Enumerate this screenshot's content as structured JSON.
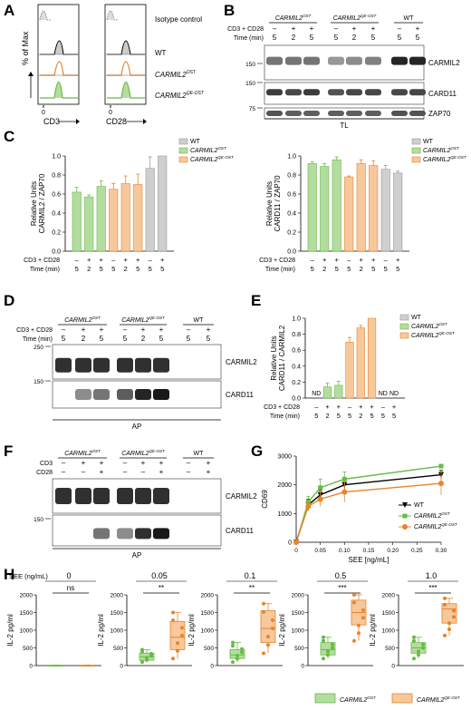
{
  "panels": {
    "A": "A",
    "B": "B",
    "C": "C",
    "D": "D",
    "E": "E",
    "F": "F",
    "G": "G",
    "H": "H"
  },
  "geno": {
    "ost": "CARMIL2",
    "ost_sup": "OST",
    "qe": "CARMIL2",
    "qe_sup": "QE-OST",
    "wt": "WT"
  },
  "panelA": {
    "ylabel": "% of Max",
    "x1": "CD3",
    "x2": "CD28",
    "ticks": [
      "0",
      "0"
    ],
    "legend": [
      "Isotype control",
      "WT",
      "CARMIL2",
      "CARMIL2"
    ],
    "legend_sup": [
      "",
      "",
      "OST",
      "QE-OST"
    ]
  },
  "blot": {
    "cd3cd28": "CD3 + CD28",
    "time": "Time (min)",
    "cd3": "CD3",
    "cd28": "CD28",
    "stim": [
      "–",
      "+",
      "+",
      "–",
      "+",
      "+",
      "–",
      "+"
    ],
    "times": [
      "5",
      "2",
      "5",
      "5",
      "2",
      "5",
      "5",
      "5"
    ],
    "stimD": [
      "–",
      "+",
      "+",
      "–",
      "+",
      "+",
      "–",
      "+"
    ],
    "timesD": [
      "5",
      "2",
      "5",
      "5",
      "2",
      "5",
      "5",
      "5"
    ],
    "cd3F": [
      "–",
      "+",
      "+",
      "–",
      "+",
      "+",
      "–",
      "+"
    ],
    "cd28F": [
      "–",
      "–",
      "+",
      "–",
      "–",
      "+",
      "–",
      "+"
    ]
  },
  "panelB": {
    "bands": [
      "CARMIL2",
      "CARD11",
      "ZAP70"
    ],
    "mw": [
      "150",
      "150",
      "75"
    ],
    "footer": "TL"
  },
  "panelD": {
    "bands": [
      "CARMIL2",
      "CARD11"
    ],
    "mw": [
      "250",
      "150"
    ],
    "footer": "AP"
  },
  "panelF": {
    "bands": [
      "CARMIL2",
      "CARD11"
    ],
    "mw": [
      "150"
    ],
    "footer": "AP"
  },
  "panelC": {
    "left": {
      "ylabel1": "Relative Units",
      "ylabel2": "CARMIL2 / ZAP70",
      "yticks": [
        "0.0",
        "0.2",
        "0.4",
        "0.6",
        "0.8",
        "1.0"
      ]
    },
    "right": {
      "ylabel1": "Relative Units",
      "ylabel2": "CARD11 / ZAP70",
      "yticks": [
        "0.0",
        "0.2",
        "0.4",
        "0.6",
        "0.8",
        "1.0"
      ]
    }
  },
  "panelE": {
    "ylabel1": "Relative Units",
    "ylabel2": "CARD11 / CARMIL2",
    "yticks": [
      "0.0",
      "0.2",
      "0.4",
      "0.6",
      "0.8",
      "1.0"
    ],
    "nd": "ND"
  },
  "panelG": {
    "ylabel": "CD69",
    "xlabel": "SEE [ng/mL]",
    "yticks": [
      "0",
      "1000",
      "2000",
      "3000"
    ],
    "xticks": [
      "0",
      "0.05",
      "0.10",
      "0.15",
      "0.20",
      "0.25",
      "0.30"
    ]
  },
  "panelH": {
    "see_label": "SEE (ng/mL)",
    "ylabel": "IL-2 pg/ml",
    "yticks": [
      "0",
      "500",
      "1000",
      "1500",
      "2000"
    ]
  },
  "chart_data": [
    {
      "type": "bar",
      "ylabel": "Relative Units CARMIL2 / ZAP70",
      "ylim": [
        0,
        1.0
      ],
      "categories": [
        "5",
        "2",
        "5",
        "5",
        "2",
        "5",
        "5",
        "5"
      ],
      "values": [
        0.62,
        0.57,
        0.68,
        0.65,
        0.71,
        0.7,
        0.87,
        1.0
      ],
      "errors": [
        0.05,
        0.02,
        0.06,
        0.06,
        0.08,
        0.11,
        0.12,
        0
      ]
    },
    {
      "type": "bar",
      "ylabel": "Relative Units CARD11 / ZAP70",
      "ylim": [
        0,
        1.0
      ],
      "categories": [
        "5",
        "2",
        "5",
        "5",
        "2",
        "5",
        "5",
        "5"
      ],
      "values": [
        0.92,
        0.89,
        0.96,
        0.78,
        0.92,
        0.9,
        0.86,
        0.82
      ],
      "errors": [
        0.02,
        0.03,
        0.03,
        0.01,
        0.04,
        0.05,
        0.04,
        0.02
      ]
    },
    {
      "type": "bar",
      "ylabel": "Relative Units CARD11 / CARMIL2",
      "ylim": [
        0,
        1.0
      ],
      "categories": [
        "5",
        "2",
        "5",
        "5",
        "2",
        "5",
        "5",
        "5"
      ],
      "values": [
        0,
        0.14,
        0.16,
        0.7,
        0.88,
        1.0,
        0,
        0
      ],
      "errors": [
        0,
        0.05,
        0.05,
        0.06,
        0.03,
        0,
        0,
        0
      ],
      "labels": [
        "ND",
        "",
        "",
        "",
        "",
        "",
        "ND",
        "ND"
      ]
    },
    {
      "type": "line",
      "xlabel": "SEE [ng/mL]",
      "ylabel": "CD69",
      "ylim": [
        0,
        3000
      ],
      "xlim": [
        0,
        0.3
      ],
      "x": [
        0,
        0.025,
        0.05,
        0.1,
        0.3
      ],
      "series": [
        {
          "name": "WT",
          "values": [
            0,
            1300,
            1650,
            2000,
            2350
          ],
          "errors": [
            0,
            200,
            150,
            150,
            150
          ]
        },
        {
          "name": "CARMIL2 OST",
          "values": [
            0,
            1400,
            1900,
            2200,
            2650
          ],
          "errors": [
            0,
            200,
            300,
            250,
            0
          ]
        },
        {
          "name": "CARMIL2 QE-OST",
          "values": [
            0,
            1250,
            1500,
            1750,
            2050
          ],
          "errors": [
            0,
            150,
            250,
            350,
            400
          ]
        }
      ]
    },
    {
      "type": "box",
      "ylabel": "IL-2 pg/ml",
      "ylim": [
        0,
        2000
      ],
      "panels": [
        {
          "see": "0",
          "sig": "ns",
          "ost": {
            "q1": 0,
            "med": 0,
            "q3": 10,
            "min": 0,
            "max": 15
          },
          "qe": {
            "q1": 0,
            "med": 0,
            "q3": 10,
            "min": 0,
            "max": 15
          }
        },
        {
          "see": "0.05",
          "sig": "**",
          "ost": {
            "q1": 150,
            "med": 250,
            "q3": 350,
            "min": 100,
            "max": 450
          },
          "qe": {
            "q1": 450,
            "med": 800,
            "q3": 1250,
            "min": 200,
            "max": 1500
          }
        },
        {
          "see": "0.1",
          "sig": "**",
          "ost": {
            "q1": 200,
            "med": 300,
            "q3": 450,
            "min": 100,
            "max": 650
          },
          "qe": {
            "q1": 650,
            "med": 1050,
            "q3": 1550,
            "min": 350,
            "max": 1750
          }
        },
        {
          "see": "0.5",
          "sig": "***",
          "ost": {
            "q1": 300,
            "med": 450,
            "q3": 650,
            "min": 200,
            "max": 800
          },
          "qe": {
            "q1": 1150,
            "med": 1500,
            "q3": 1850,
            "min": 700,
            "max": 2000
          }
        },
        {
          "see": "1.0",
          "sig": "***",
          "ost": {
            "q1": 350,
            "med": 500,
            "q3": 650,
            "min": 200,
            "max": 800
          },
          "qe": {
            "q1": 1200,
            "med": 1600,
            "q3": 1750,
            "min": 850,
            "max": 1900
          }
        }
      ]
    }
  ],
  "colors": {
    "wt": "#9a9a9a",
    "ost": "#66bb44",
    "qe": "#e8842a",
    "ost_fill": "#b5dca0",
    "qe_fill": "#f7c89c",
    "wt_fill": "#cfcfcf"
  }
}
